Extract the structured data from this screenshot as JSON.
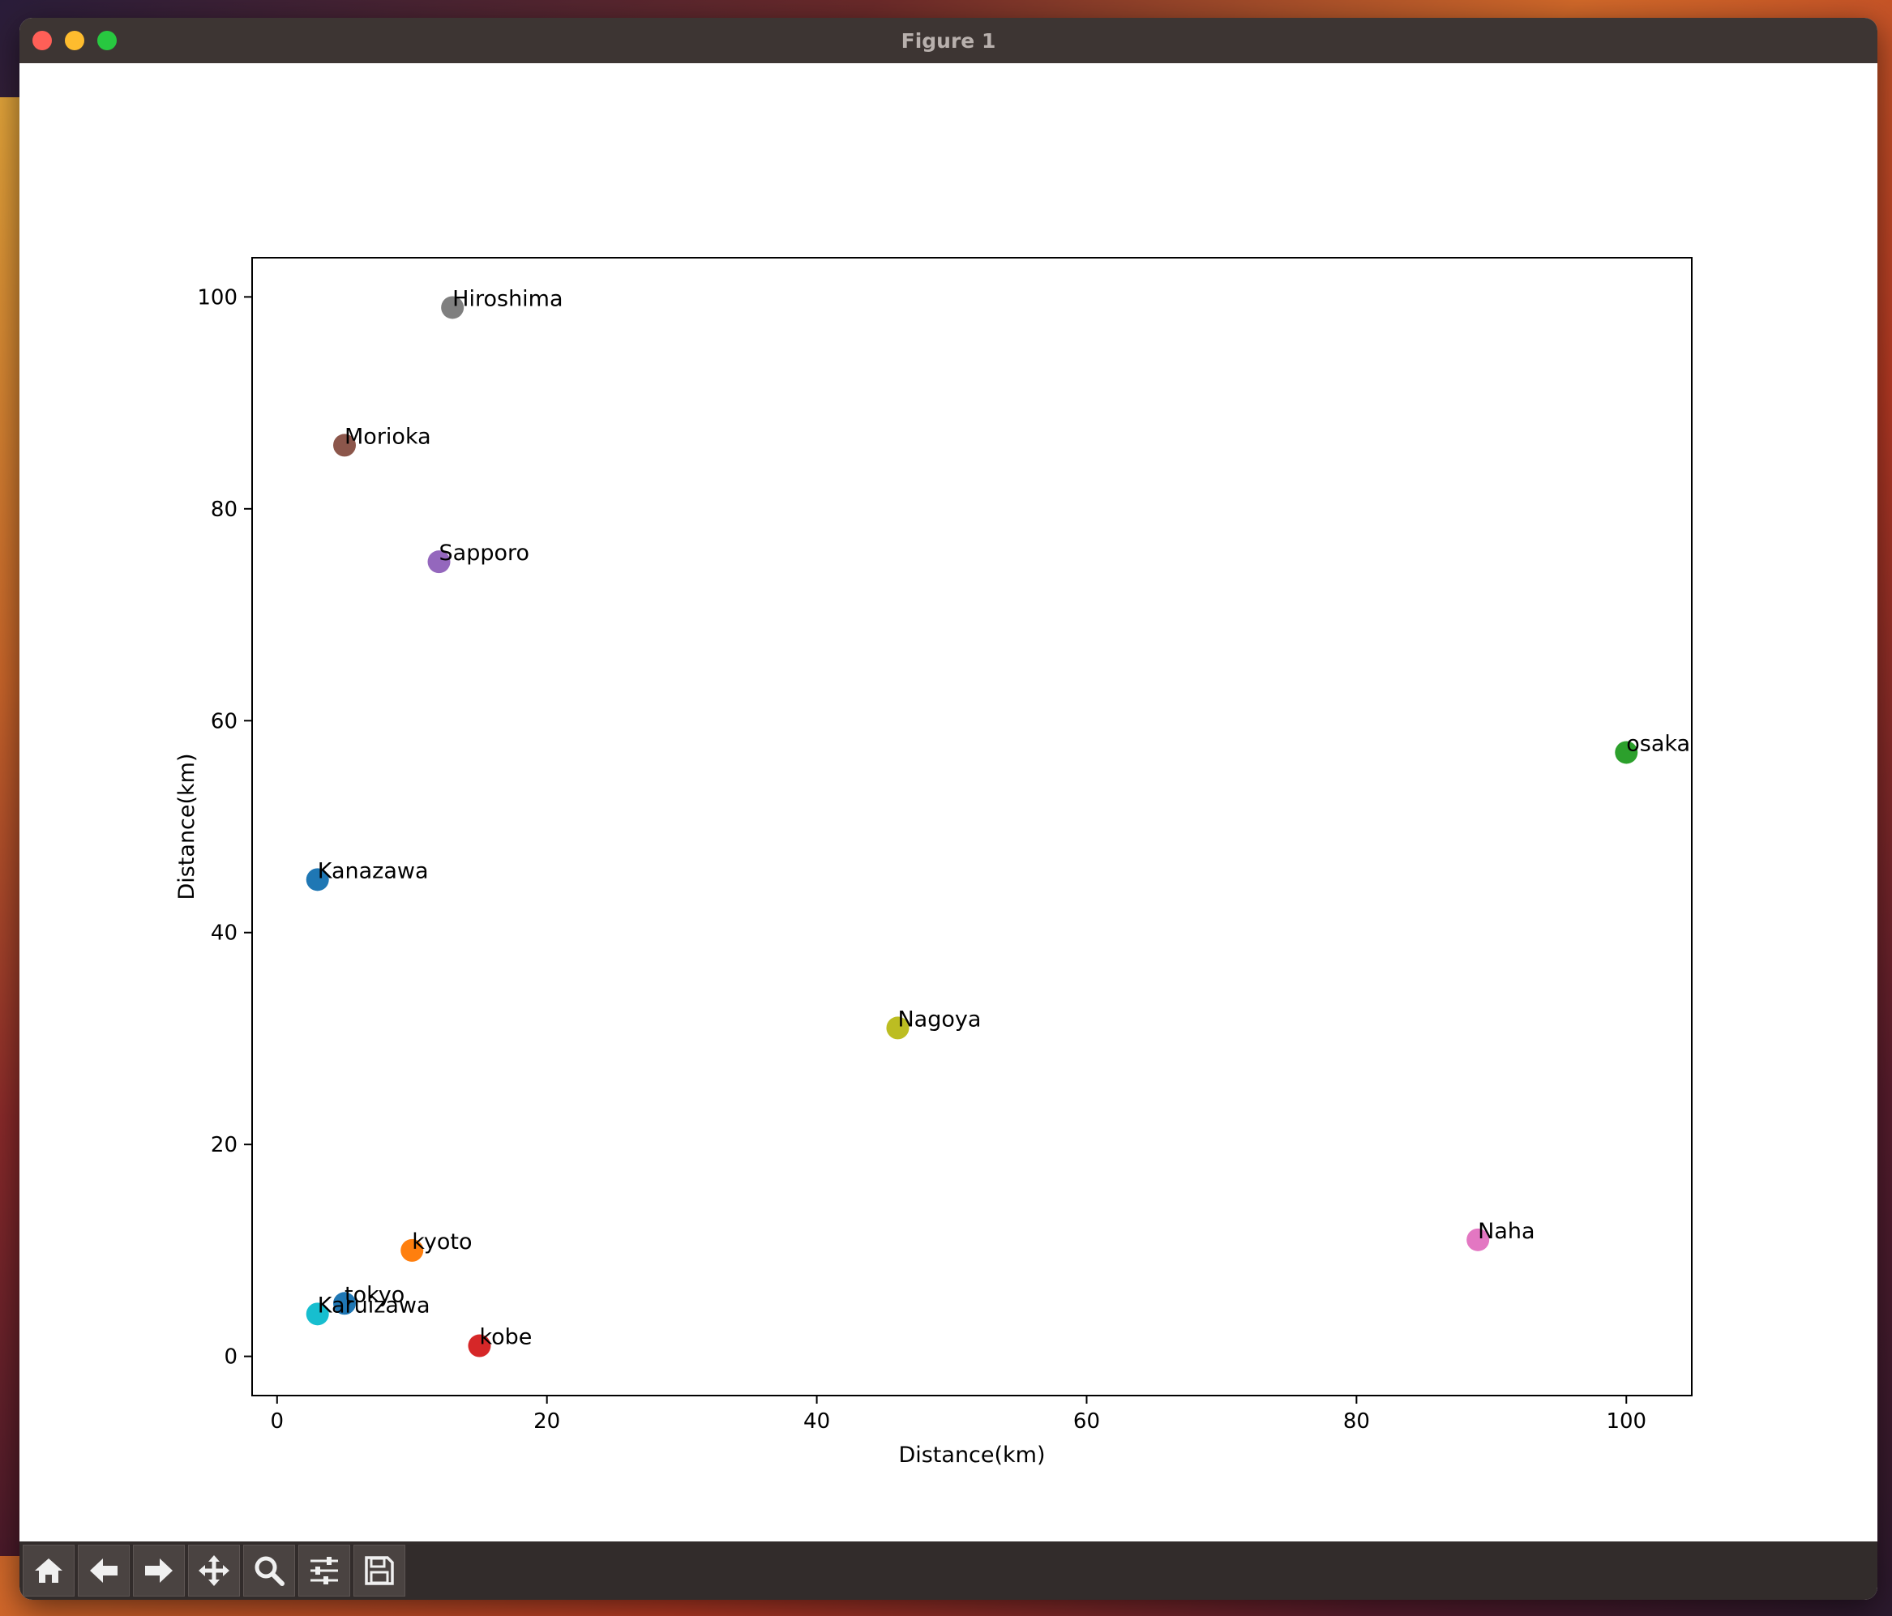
{
  "window": {
    "title": "Figure 1"
  },
  "toolbar": {
    "buttons": [
      {
        "name": "home-button",
        "icon": "home-icon"
      },
      {
        "name": "back-button",
        "icon": "arrow-left-icon"
      },
      {
        "name": "forward-button",
        "icon": "arrow-right-icon"
      },
      {
        "name": "pan-button",
        "icon": "move-icon"
      },
      {
        "name": "zoom-button",
        "icon": "magnifier-icon"
      },
      {
        "name": "configure-subplots-button",
        "icon": "sliders-icon"
      },
      {
        "name": "save-button",
        "icon": "floppy-disk-icon"
      }
    ]
  },
  "chart_data": {
    "type": "scatter",
    "xlabel": "Distance(km)",
    "ylabel": "Distance(km)",
    "xlim": [
      -1.85,
      104.85
    ],
    "ylim": [
      -3.7,
      103.7
    ],
    "xticks": [
      0,
      20,
      40,
      60,
      80,
      100
    ],
    "yticks": [
      0,
      20,
      40,
      60,
      80,
      100
    ],
    "grid": false,
    "points": [
      {
        "label": "tokyo",
        "x": 5,
        "y": 5,
        "color": "#1f77b4"
      },
      {
        "label": "kyoto",
        "x": 10,
        "y": 10,
        "color": "#ff7f0e"
      },
      {
        "label": "osaka",
        "x": 100,
        "y": 57,
        "color": "#2ca02c"
      },
      {
        "label": "kobe",
        "x": 15,
        "y": 1,
        "color": "#d62728"
      },
      {
        "label": "Sapporo",
        "x": 12,
        "y": 75,
        "color": "#9467bd"
      },
      {
        "label": "Morioka",
        "x": 5,
        "y": 86,
        "color": "#8c564b"
      },
      {
        "label": "Naha",
        "x": 89,
        "y": 11,
        "color": "#e377c2"
      },
      {
        "label": "Hiroshima",
        "x": 13,
        "y": 99,
        "color": "#7f7f7f"
      },
      {
        "label": "Nagoya",
        "x": 46,
        "y": 31,
        "color": "#bcbd22"
      },
      {
        "label": "Karuizawa",
        "x": 3,
        "y": 4,
        "color": "#17becf"
      },
      {
        "label": "Kanazawa",
        "x": 3,
        "y": 45,
        "color": "#1f77b4"
      }
    ]
  }
}
